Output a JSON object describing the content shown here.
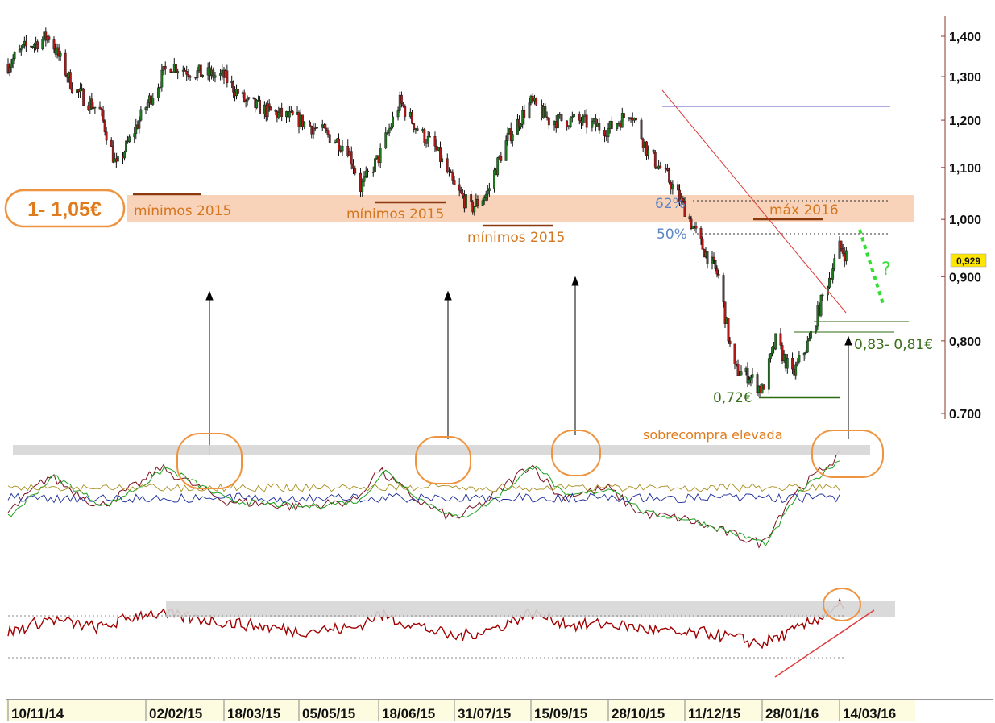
{
  "chart_data": {
    "type": "candlestick",
    "price_axis": {
      "scale": "log",
      "ticks": [
        "1,400",
        "1,300",
        "1,200",
        "1,100",
        "1,000",
        "0,900",
        "0,800",
        "0.700"
      ],
      "tick_values": [
        1.4,
        1.3,
        1.2,
        1.1,
        1.0,
        0.9,
        0.8,
        0.7
      ],
      "range": [
        0.69,
        1.47
      ]
    },
    "date_axis": {
      "ticks": [
        "10/11/14",
        "02/02/15",
        "18/03/15",
        "05/05/15",
        "18/06/15",
        "31/07/15",
        "15/09/15",
        "28/10/15",
        "11/12/15",
        "28/01/16",
        "14/03/16"
      ]
    },
    "last_price": {
      "label": "0,929",
      "value": 0.929,
      "color": "#ffe600"
    },
    "price_keypoints": {
      "dates": [
        "10/11/14",
        "2014-11-20",
        "2014-12-05",
        "2014-12-20",
        "2015-01-05",
        "2015-01-15",
        "2015-01-25",
        "02/02/15",
        "2015-02-15",
        "2015-03-01",
        "18/03/15",
        "2015-04-01",
        "2015-04-15",
        "05/05/15",
        "2015-05-20",
        "2015-06-01",
        "2015-06-08",
        "18/06/15",
        "2015-06-30",
        "2015-07-10",
        "2015-07-20",
        "31/07/15",
        "2015-08-10",
        "2015-08-20",
        "2015-08-25",
        "2015-09-01",
        "15/09/15",
        "2015-09-25",
        "2015-10-10",
        "28/10/15",
        "2015-11-10",
        "2015-11-20",
        "2015-12-01",
        "11/12/15",
        "2015-12-20",
        "2016-01-01",
        "2016-01-10",
        "2016-01-20",
        "28/01/16",
        "2016-02-05",
        "2016-02-15",
        "2016-02-25",
        "14/03/16",
        "2016-03-20"
      ],
      "values": [
        1.33,
        1.37,
        1.4,
        1.27,
        1.22,
        1.1,
        1.17,
        1.23,
        1.33,
        1.31,
        1.3,
        1.24,
        1.22,
        1.2,
        1.17,
        1.14,
        1.06,
        1.12,
        1.24,
        1.18,
        1.14,
        1.06,
        1.02,
        1.05,
        1.1,
        1.16,
        1.24,
        1.2,
        1.2,
        1.18,
        1.22,
        1.13,
        1.08,
        1.02,
        0.96,
        0.9,
        0.76,
        0.75,
        0.73,
        0.8,
        0.75,
        0.8,
        0.95,
        0.93
      ]
    },
    "oscillator_keypoints": {
      "dates": [
        "10/11/14",
        "2014-12-05",
        "2015-01-05",
        "02/02/15",
        "2015-02-10",
        "18/03/15",
        "05/05/15",
        "2015-06-05",
        "18/06/15",
        "2015-07-10",
        "31/07/15",
        "2015-08-20",
        "15/09/15",
        "2015-10-01",
        "28/10/15",
        "2015-11-15",
        "11/12/15",
        "28/01/16",
        "2016-02-15",
        "14/03/16"
      ],
      "values": [
        35,
        65,
        40,
        62,
        72,
        45,
        40,
        45,
        70,
        45,
        30,
        45,
        75,
        48,
        55,
        35,
        30,
        10,
        50,
        82
      ]
    },
    "rsi_keypoints": {
      "dates": [
        "10/11/14",
        "2014-12-05",
        "2015-01-05",
        "02/02/15",
        "18/03/15",
        "05/05/15",
        "2015-06-05",
        "18/06/15",
        "2015-07-15",
        "31/07/15",
        "2015-08-25",
        "15/09/15",
        "2015-10-10",
        "28/10/15",
        "11/12/15",
        "2015-12-25",
        "28/01/16",
        "2016-02-20",
        "2016-03-05",
        "14/03/16",
        "2016-03-18"
      ],
      "values": [
        40,
        55,
        45,
        62,
        52,
        42,
        45,
        60,
        45,
        35,
        45,
        62,
        48,
        50,
        38,
        40,
        28,
        45,
        60,
        72,
        62
      ]
    },
    "annotations": {
      "zone_label": "1- 1,05€",
      "min_labels": [
        "mínimos 2015",
        "mínimos 2015",
        "mínimos 2015"
      ],
      "fib_62": "62%",
      "fib_50": "50%",
      "max_label": "máx 2016",
      "support_low": "0,72€",
      "support_band": "0,83- 0,81€",
      "question": "?",
      "overbought": "sobrecompra elevada"
    }
  },
  "colors": {
    "zone": "#f9d3b9",
    "orange": "#ee9440",
    "orange_text": "#d3761f",
    "min_line": "#8b3a0f",
    "blue_text": "#5b86c8",
    "green_text": "#3a6e1a",
    "green_dots": "#33dd33",
    "trend_red": "#e03a3a",
    "rsi": "#a00000",
    "band_gray": "#d6d6d6",
    "axis_brown": "#8b3a2a"
  }
}
